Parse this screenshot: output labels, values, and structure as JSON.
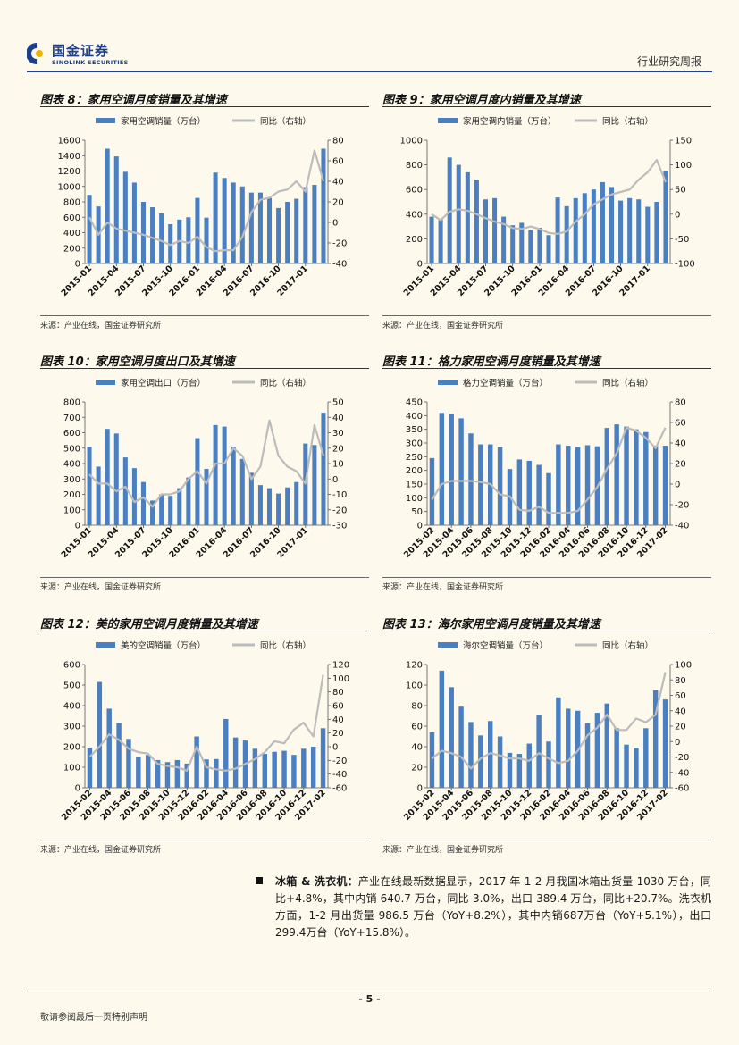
{
  "header": {
    "brand_cn": "国金证券",
    "brand_en": "SINOLINK SECURITIES",
    "report_type": "行业研究周报"
  },
  "colors": {
    "bar": "#4a7fc1",
    "line": "#bcbcbc",
    "brand": "#1f3f8a"
  },
  "source_text": "来源：产业在线，国金证券研究所",
  "chart_data": [
    {
      "type": "bar+line",
      "title": "图表 8：家用空调月度销量及其增速",
      "legend": [
        "家用空调销量（万台）",
        "同比（右轴）"
      ],
      "xticks": [
        "2015-01",
        "2015-04",
        "2015-07",
        "2015-10",
        "2016-01",
        "2016-04",
        "2016-07",
        "2016-10",
        "2017-01"
      ],
      "start": "2015-01",
      "left": {
        "min": 0,
        "max": 1600,
        "step": 200
      },
      "right": {
        "min": -40,
        "max": 80,
        "step": 20
      },
      "bars": [
        890,
        740,
        1490,
        1390,
        1190,
        1050,
        800,
        730,
        650,
        510,
        570,
        600,
        850,
        595,
        1180,
        1110,
        1050,
        1000,
        920,
        920,
        850,
        720,
        800,
        840,
        990,
        1020,
        1490
      ],
      "line": [
        5,
        -12,
        0,
        -6,
        -8,
        -10,
        -12,
        -15,
        -18,
        -22,
        -18,
        -20,
        -14,
        -24,
        -28,
        -27,
        -27,
        -14,
        10,
        22,
        24,
        30,
        32,
        40,
        30,
        70,
        40
      ]
    },
    {
      "type": "bar+line",
      "title": "图表 9：家用空调月度内销量及其增速",
      "legend": [
        "家用空调内销量（万台）",
        "同比（右轴）"
      ],
      "xticks": [
        "2015-01",
        "2015-04",
        "2015-07",
        "2015-10",
        "2016-01",
        "2016-04",
        "2016-07",
        "2016-10",
        "2017-01"
      ],
      "start": "2015-01",
      "left": {
        "min": 0,
        "max": 1000,
        "step": 200
      },
      "right": {
        "min": -100,
        "max": 150,
        "step": 50
      },
      "bars": [
        380,
        360,
        860,
        800,
        740,
        680,
        520,
        530,
        380,
        310,
        330,
        270,
        290,
        230,
        535,
        465,
        530,
        570,
        600,
        660,
        620,
        510,
        530,
        520,
        460,
        500,
        750
      ],
      "line": [
        0,
        -12,
        5,
        10,
        7,
        0,
        -8,
        -15,
        -20,
        -28,
        -30,
        -25,
        -30,
        -38,
        -40,
        -35,
        -15,
        0,
        20,
        30,
        40,
        45,
        50,
        70,
        85,
        110,
        65
      ]
    },
    {
      "type": "bar+line",
      "title": "图表 10：家用空调月度出口及其增速",
      "legend": [
        "家用空调出口（万台）",
        "同比（右轴）"
      ],
      "xticks": [
        "2015-01",
        "2015-04",
        "2015-07",
        "2015-10",
        "2016-01",
        "2016-04",
        "2016-07",
        "2016-10",
        "2017-01"
      ],
      "start": "2015-01",
      "left": {
        "min": 0,
        "max": 800,
        "step": 100
      },
      "right": {
        "min": -30,
        "max": 50,
        "step": 10
      },
      "bars": [
        510,
        380,
        625,
        595,
        440,
        370,
        280,
        160,
        200,
        190,
        240,
        310,
        565,
        365,
        650,
        640,
        510,
        430,
        340,
        260,
        240,
        205,
        245,
        280,
        530,
        520,
        730
      ],
      "line": [
        3,
        -3,
        -3,
        -8,
        -5,
        -15,
        -12,
        -18,
        -10,
        -10,
        -8,
        0,
        5,
        -3,
        10,
        10,
        20,
        15,
        0,
        8,
        38,
        15,
        8,
        5,
        -3,
        35,
        15
      ]
    },
    {
      "type": "bar+line",
      "title": "图表 11：格力家用空调月度销量及其增速",
      "legend": [
        "格力空调销量（万台）",
        "同比（右轴）"
      ],
      "xticks": [
        "2015-02",
        "2015-04",
        "2015-06",
        "2015-08",
        "2015-10",
        "2015-12",
        "2016-02",
        "2016-04",
        "2016-06",
        "2016-08",
        "2016-10",
        "2016-12",
        "2017-02"
      ],
      "start": "2015-02",
      "left": {
        "min": 0,
        "max": 450,
        "step": 50
      },
      "right": {
        "min": -40,
        "max": 80,
        "step": 20
      },
      "bars": [
        245,
        410,
        405,
        390,
        335,
        295,
        295,
        285,
        205,
        240,
        235,
        220,
        190,
        295,
        290,
        285,
        292,
        288,
        355,
        368,
        360,
        350,
        340,
        290,
        290
      ],
      "line": [
        -15,
        0,
        3,
        3,
        3,
        2,
        0,
        -10,
        -12,
        -25,
        -26,
        -22,
        -28,
        -28,
        -28,
        -26,
        -15,
        -3,
        15,
        30,
        55,
        52,
        45,
        35,
        55
      ]
    },
    {
      "type": "bar+line",
      "title": "图表 12：美的家用空调月度销量及其增速",
      "legend": [
        "美的空调销量（万台）",
        "同比（右轴）"
      ],
      "xticks": [
        "2015-02",
        "2015-04",
        "2015-06",
        "2015-08",
        "2015-10",
        "2015-12",
        "2016-02",
        "2016-04",
        "2016-06",
        "2016-08",
        "2016-10",
        "2016-12",
        "2017-02"
      ],
      "start": "2015-02",
      "left": {
        "min": 0,
        "max": 600,
        "step": 100
      },
      "right": {
        "min": -60,
        "max": 120,
        "step": 20
      },
      "bars": [
        195,
        515,
        385,
        315,
        238,
        150,
        160,
        135,
        125,
        135,
        118,
        250,
        138,
        140,
        335,
        245,
        230,
        190,
        165,
        175,
        180,
        160,
        190,
        200,
        290
      ],
      "line": [
        -15,
        0,
        18,
        10,
        -3,
        -8,
        -10,
        -25,
        -28,
        -30,
        -35,
        0,
        -30,
        -33,
        -35,
        -32,
        -25,
        -18,
        -8,
        8,
        5,
        25,
        35,
        15,
        105
      ]
    },
    {
      "type": "bar+line",
      "title": "图表 13：海尔家用空调月度销量及其增速",
      "legend": [
        "海尔空调销量（万台）",
        "同比（右轴）"
      ],
      "xticks": [
        "2015-02",
        "2015-04",
        "2015-06",
        "2015-08",
        "2015-10",
        "2015-12",
        "2016-02",
        "2016-04",
        "2016-06",
        "2016-08",
        "2016-10",
        "2016-12",
        "2017-02"
      ],
      "start": "2015-02",
      "left": {
        "min": 0,
        "max": 120,
        "step": 20
      },
      "right": {
        "min": -60,
        "max": 100,
        "step": 20
      },
      "bars": [
        54,
        114,
        98,
        79,
        64,
        51,
        65,
        50,
        34,
        33,
        43,
        71,
        45,
        88,
        77,
        75,
        63,
        73,
        82,
        58,
        42,
        39,
        58,
        95,
        86
      ],
      "line": [
        -22,
        -12,
        -15,
        -20,
        -35,
        -22,
        -15,
        -18,
        -22,
        -22,
        -25,
        -15,
        -22,
        -28,
        -25,
        -12,
        8,
        18,
        35,
        15,
        15,
        30,
        25,
        35,
        90
      ]
    }
  ],
  "bullet": {
    "head": "冰箱 & 洗衣机：",
    "text": "产业在线最新数据显示，2017 年 1-2 月我国冰箱出货量 1030 万台，同比+4.8%，其中内销 640.7 万台，同比-3.0%，出口 389.4 万台，同比+20.7%。洗衣机方面，1-2 月出货量 986.5 万台（YoY+8.2%），其中内销687万台（YoY+5.1%），出口299.4万台（YoY+15.8%）。"
  },
  "footer": {
    "page_number": "- 5 -",
    "disclaimer": "敬请参阅最后一页特别声明"
  }
}
